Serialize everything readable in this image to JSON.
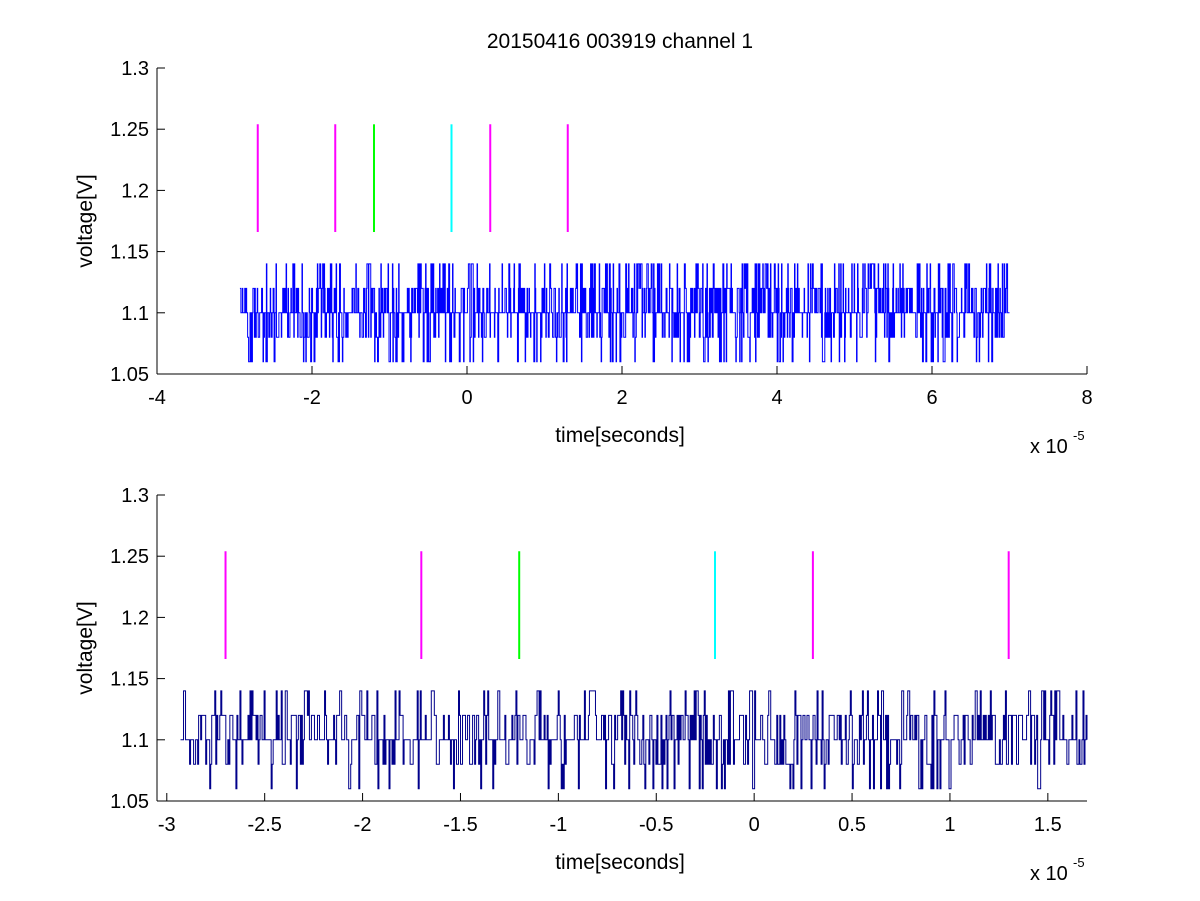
{
  "figure_title": "20150416 003919 channel 1",
  "chart_data": [
    {
      "type": "line",
      "title": "20150416 003919 channel 1",
      "xlabel": "time[seconds]",
      "ylabel": "voltage[V]",
      "x_exponent_label": "x 10",
      "x_exponent": "-5",
      "xlim": [
        -4,
        8
      ],
      "ylim": [
        1.05,
        1.3
      ],
      "xticks": [
        "-4",
        "-2",
        "0",
        "2",
        "4",
        "6",
        "8"
      ],
      "yticks": [
        "1.05",
        "1.1",
        "1.15",
        "1.2",
        "1.25",
        "1.3"
      ],
      "grid": false,
      "signal": {
        "color": "#0000ff",
        "x_range": [
          -2.93,
          7.0
        ],
        "levels": [
          1.06,
          1.08,
          1.1,
          1.12,
          1.14
        ],
        "baseline": 1.1
      },
      "markers": [
        {
          "x": -2.7,
          "y_range": [
            1.166,
            1.254
          ],
          "color": "#ff00ff"
        },
        {
          "x": -1.7,
          "y_range": [
            1.166,
            1.254
          ],
          "color": "#ff00ff"
        },
        {
          "x": -1.2,
          "y_range": [
            1.166,
            1.254
          ],
          "color": "#00ff00"
        },
        {
          "x": -0.2,
          "y_range": [
            1.166,
            1.254
          ],
          "color": "#00ffff"
        },
        {
          "x": 0.3,
          "y_range": [
            1.166,
            1.254
          ],
          "color": "#ff00ff"
        },
        {
          "x": 1.3,
          "y_range": [
            1.166,
            1.254
          ],
          "color": "#ff00ff"
        }
      ]
    },
    {
      "type": "line",
      "xlabel": "time[seconds]",
      "ylabel": "voltage[V]",
      "x_exponent_label": "x 10",
      "x_exponent": "-5",
      "xlim": [
        -3.05,
        1.7
      ],
      "ylim": [
        1.05,
        1.3
      ],
      "xticks": [
        "-3",
        "-2.5",
        "-2",
        "-1.5",
        "-1",
        "-0.5",
        "0",
        "0.5",
        "1",
        "1.5"
      ],
      "yticks": [
        "1.05",
        "1.1",
        "1.15",
        "1.2",
        "1.25",
        "1.3"
      ],
      "grid": false,
      "signal": {
        "color": "#00008b",
        "x_range": [
          -2.93,
          1.7
        ],
        "levels": [
          1.06,
          1.08,
          1.1,
          1.12,
          1.14
        ],
        "baseline": 1.1
      },
      "markers": [
        {
          "x": -2.7,
          "y_range": [
            1.166,
            1.254
          ],
          "color": "#ff00ff"
        },
        {
          "x": -1.7,
          "y_range": [
            1.166,
            1.254
          ],
          "color": "#ff00ff"
        },
        {
          "x": -1.2,
          "y_range": [
            1.166,
            1.254
          ],
          "color": "#00ff00"
        },
        {
          "x": -0.2,
          "y_range": [
            1.166,
            1.254
          ],
          "color": "#00ffff"
        },
        {
          "x": 0.3,
          "y_range": [
            1.166,
            1.254
          ],
          "color": "#ff00ff"
        },
        {
          "x": 1.3,
          "y_range": [
            1.166,
            1.254
          ],
          "color": "#ff00ff"
        }
      ]
    }
  ]
}
